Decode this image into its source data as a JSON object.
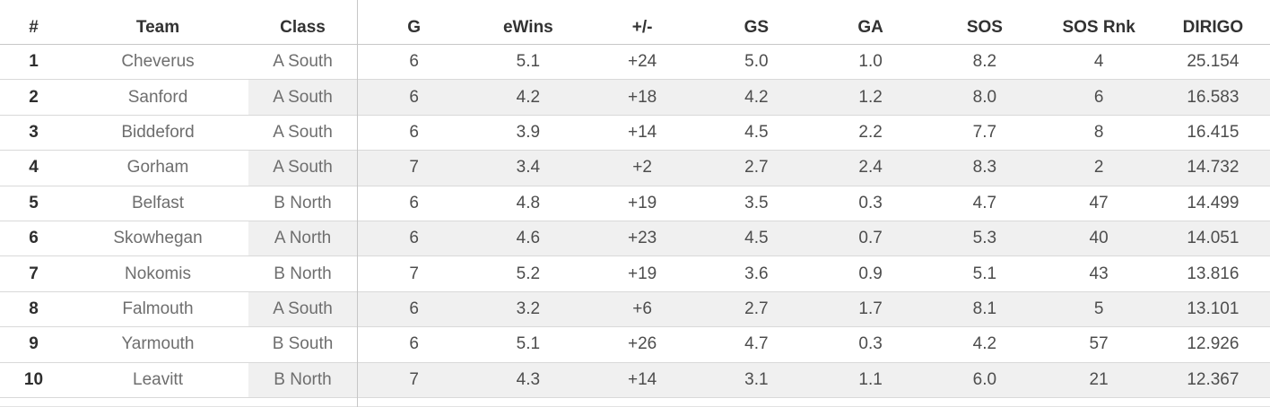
{
  "title": "Team rankings text table",
  "colors": {
    "background": "#ffffff",
    "row_band": "#f0f0f0",
    "header_text": "#323232",
    "row_header_text": "#6e6e6e",
    "rank_text": "#2e2e2e",
    "value_text": "#4d4d4d",
    "header_rule": "#c7c7c7",
    "row_rule": "#d9d9d9",
    "pane_divider": "#c6c6c6"
  },
  "chart_data": {
    "type": "table",
    "legend_position": "none",
    "grid": "horizontal row rules, vertical divider after Class column",
    "row_banding": "even-numbered rows shaded from Class column through DIRIGO column",
    "columns": [
      {
        "id": "rank",
        "label": "#"
      },
      {
        "id": "team",
        "label": "Team"
      },
      {
        "id": "klass",
        "label": "Class"
      },
      {
        "id": "g",
        "label": "G"
      },
      {
        "id": "ewins",
        "label": "eWins"
      },
      {
        "id": "plus_minus",
        "label": "+/-"
      },
      {
        "id": "gs",
        "label": "GS"
      },
      {
        "id": "ga",
        "label": "GA"
      },
      {
        "id": "sos",
        "label": "SOS"
      },
      {
        "id": "sos_rnk",
        "label": "SOS Rnk"
      },
      {
        "id": "dirigo",
        "label": "DIRIGO"
      }
    ],
    "rows": [
      {
        "rank": "1",
        "team": "Cheverus",
        "klass": "A South",
        "g": "6",
        "ewins": "5.1",
        "plus_minus": "+24",
        "gs": "5.0",
        "ga": "1.0",
        "sos": "8.2",
        "sos_rnk": "4",
        "dirigo": "25.154"
      },
      {
        "rank": "2",
        "team": "Sanford",
        "klass": "A South",
        "g": "6",
        "ewins": "4.2",
        "plus_minus": "+18",
        "gs": "4.2",
        "ga": "1.2",
        "sos": "8.0",
        "sos_rnk": "6",
        "dirigo": "16.583"
      },
      {
        "rank": "3",
        "team": "Biddeford",
        "klass": "A South",
        "g": "6",
        "ewins": "3.9",
        "plus_minus": "+14",
        "gs": "4.5",
        "ga": "2.2",
        "sos": "7.7",
        "sos_rnk": "8",
        "dirigo": "16.415"
      },
      {
        "rank": "4",
        "team": "Gorham",
        "klass": "A South",
        "g": "7",
        "ewins": "3.4",
        "plus_minus": "+2",
        "gs": "2.7",
        "ga": "2.4",
        "sos": "8.3",
        "sos_rnk": "2",
        "dirigo": "14.732"
      },
      {
        "rank": "5",
        "team": "Belfast",
        "klass": "B North",
        "g": "6",
        "ewins": "4.8",
        "plus_minus": "+19",
        "gs": "3.5",
        "ga": "0.3",
        "sos": "4.7",
        "sos_rnk": "47",
        "dirigo": "14.499"
      },
      {
        "rank": "6",
        "team": "Skowhegan",
        "klass": "A North",
        "g": "6",
        "ewins": "4.6",
        "plus_minus": "+23",
        "gs": "4.5",
        "ga": "0.7",
        "sos": "5.3",
        "sos_rnk": "40",
        "dirigo": "14.051"
      },
      {
        "rank": "7",
        "team": "Nokomis",
        "klass": "B North",
        "g": "7",
        "ewins": "5.2",
        "plus_minus": "+19",
        "gs": "3.6",
        "ga": "0.9",
        "sos": "5.1",
        "sos_rnk": "43",
        "dirigo": "13.816"
      },
      {
        "rank": "8",
        "team": "Falmouth",
        "klass": "A South",
        "g": "6",
        "ewins": "3.2",
        "plus_minus": "+6",
        "gs": "2.7",
        "ga": "1.7",
        "sos": "8.1",
        "sos_rnk": "5",
        "dirigo": "13.101"
      },
      {
        "rank": "9",
        "team": "Yarmouth",
        "klass": "B South",
        "g": "6",
        "ewins": "5.1",
        "plus_minus": "+26",
        "gs": "4.7",
        "ga": "0.3",
        "sos": "4.2",
        "sos_rnk": "57",
        "dirigo": "12.926"
      },
      {
        "rank": "10",
        "team": "Leavitt",
        "klass": "B North",
        "g": "7",
        "ewins": "4.3",
        "plus_minus": "+14",
        "gs": "3.1",
        "ga": "1.1",
        "sos": "6.0",
        "sos_rnk": "21",
        "dirigo": "12.367"
      }
    ]
  }
}
